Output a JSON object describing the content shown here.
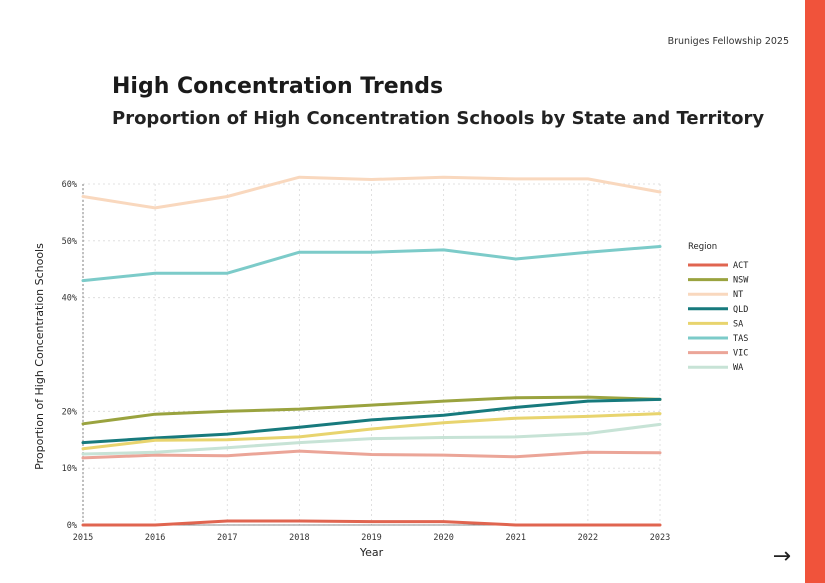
{
  "header": {
    "tag": "Bruniges Fellowship 2025"
  },
  "colors": {
    "accent": "#f0533b",
    "grid": "#d9d9d9",
    "axis": "#666666"
  },
  "nav": {
    "next_icon": "→"
  },
  "chart_data": {
    "type": "line",
    "title": "High Concentration Trends",
    "subtitle": "Proportion of High Concentration Schools by State and Territory",
    "xlabel": "Year",
    "ylabel": "Proportion of High Concentration Schools",
    "x": [
      2015,
      2016,
      2017,
      2018,
      2019,
      2020,
      2021,
      2022,
      2023
    ],
    "xlim": [
      2015,
      2023
    ],
    "ylim": [
      0,
      60
    ],
    "yticks": [
      0,
      10,
      20,
      40,
      50,
      60
    ],
    "ytick_labels": [
      "0%",
      "10%",
      "20%",
      "40%",
      "50%",
      "60%"
    ],
    "legend_title": "Region",
    "legend_position": "right",
    "grid": true,
    "series": [
      {
        "name": "ACT",
        "color": "#e06550",
        "values": [
          0.0,
          0.0,
          0.7,
          0.7,
          0.6,
          0.6,
          0.0,
          0.0,
          0.0
        ]
      },
      {
        "name": "NSW",
        "color": "#9aa33f",
        "values": [
          17.8,
          19.5,
          20.0,
          20.4,
          21.1,
          21.8,
          22.4,
          22.5,
          22.1
        ]
      },
      {
        "name": "NT",
        "color": "#f9d8be",
        "values": [
          57.8,
          55.8,
          57.8,
          61.2,
          60.8,
          61.2,
          60.9,
          60.9,
          58.6
        ]
      },
      {
        "name": "QLD",
        "color": "#177a7d",
        "values": [
          14.5,
          15.3,
          16.0,
          17.2,
          18.5,
          19.3,
          20.7,
          21.8,
          22.1
        ]
      },
      {
        "name": "SA",
        "color": "#e8d46e",
        "values": [
          13.4,
          14.9,
          15.0,
          15.5,
          16.9,
          18.0,
          18.8,
          19.1,
          19.6
        ]
      },
      {
        "name": "TAS",
        "color": "#7ccbc9",
        "values": [
          43.0,
          44.3,
          44.3,
          48.0,
          48.0,
          48.4,
          46.8,
          48.0,
          49.0
        ]
      },
      {
        "name": "VIC",
        "color": "#eba598",
        "values": [
          11.8,
          12.3,
          12.2,
          13.0,
          12.4,
          12.3,
          12.0,
          12.8,
          12.7
        ]
      },
      {
        "name": "WA",
        "color": "#c7e3d6",
        "values": [
          12.5,
          12.8,
          13.6,
          14.5,
          15.2,
          15.4,
          15.5,
          16.1,
          17.7
        ]
      }
    ]
  }
}
